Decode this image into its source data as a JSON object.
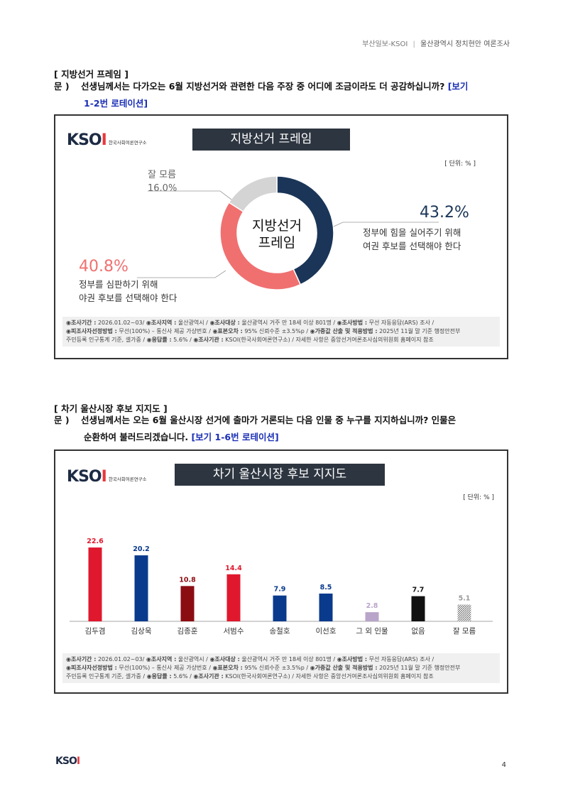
{
  "header": {
    "left": "부산일보-KSOI",
    "sep": "|",
    "right": "울산광역시 정치현안 여론조사"
  },
  "section1": {
    "title": "[ 지방선거 프레임 ]",
    "q_prefix": "문 )",
    "q_line1": "선생님께서는 다가오는 6월 지방선거와 관련한 다음 주장 중 어디에 조금이라도 더 공감하십니까?",
    "q_tag1": "[보기",
    "q_line2": "1-2번 로테이션]",
    "chart_title": "지방선거 프레임",
    "unit": "[ 단위: % ]",
    "center_line1": "지방선거",
    "center_line2": "프레임"
  },
  "chart_data": [
    {
      "type": "pie",
      "title": "지방선거 프레임",
      "slices": [
        {
          "label_line1": "정부에 힘을 실어주기 위해",
          "label_line2": "여권 후보를 선택해야 한다",
          "value": 43.2,
          "value_text": "43.2%",
          "color": "#1a3558"
        },
        {
          "label_line1": "정부를 심판하기 위해",
          "label_line2": "야권 후보를 선택해야 한다",
          "value": 40.8,
          "value_text": "40.8%",
          "color": "#f07070"
        },
        {
          "label_line1": "잘 모름",
          "label_line2": "",
          "value": 16.0,
          "value_text": "16.0%",
          "color": "#d4d4d4"
        }
      ]
    },
    {
      "type": "bar",
      "title": "차기 울산시장 후보 지지도",
      "categories": [
        "김두겸",
        "김상욱",
        "김종훈",
        "서범수",
        "송철호",
        "이선호",
        "그 외 인물",
        "없음",
        "잘 모름"
      ],
      "values": [
        22.6,
        20.2,
        10.8,
        14.4,
        7.9,
        8.5,
        2.8,
        7.7,
        5.1
      ],
      "value_texts": [
        "22.6",
        "20.2",
        "10.8",
        "14.4",
        "7.9",
        "8.5",
        "2.8",
        "7.7",
        "5.1"
      ],
      "colors": [
        "#e0182e",
        "#0a3a8c",
        "#8b0d12",
        "#e0182e",
        "#0a3a8c",
        "#0a3a8c",
        "#b9a5c9",
        "#111111",
        "#9a9a9a"
      ],
      "label_colors": [
        "#e0182e",
        "#0a3a8c",
        "#8b0d12",
        "#e0182e",
        "#0a3a8c",
        "#0a3a8c",
        "#b9a5c9",
        "#111111",
        "#9a9a9a"
      ],
      "hatched": [
        false,
        false,
        false,
        false,
        false,
        false,
        false,
        false,
        true
      ],
      "ylim": [
        0,
        30
      ]
    }
  ],
  "section2": {
    "title": "[ 차기 울산시장 후보 지지도 ]",
    "q_prefix": "문 )",
    "q_line1": "선생님께서는 오는 6월 울산시장 선거에 출마가 거론되는 다음 인물 중 누구를 지지하십니까? 인물은",
    "q_line2": "순환하여 불러드리겠습니다.",
    "q_tag": "[보기 1-6번 로테이션]",
    "chart_title": "차기 울산시장 후보 지지도",
    "unit": "[ 단위: % ]"
  },
  "logo": {
    "k": "K",
    "s": "S",
    "o": "O",
    "i": "I",
    "sub": "한국사회여론연구소"
  },
  "footnote": {
    "l1a": "◉조사기간 :",
    "l1b": "2026.01.02~03/",
    "l1c": "◉조사지역 :",
    "l1d": "울산광역시 /",
    "l1e": "◉조사대상 :",
    "l1f": "울산광역시 거주 만 18세 이상 801명 /",
    "l1g": "◉조사방법 :",
    "l1h": "무선 자동응답(ARS) 조사 /",
    "l2a": "◉피조사자선정방법 :",
    "l2b": "무선(100%) – 통신사 제공 가상번호 /",
    "l2c": "◉표본오차 :",
    "l2d": "95% 신뢰수준 ±3.5%p /",
    "l2e": "◉가중값 산출 및 적용방법 :",
    "l2f": "2025년 11월 말 기준 행정안전부",
    "l3a": "주민등록 인구통계 기준, 셀가중 /",
    "l3b": "◉응답률 :",
    "l3c": "5.6% /",
    "l3d": "◉조사기관 :",
    "l3e": "KSOI(한국사회여론연구소) /",
    "l3f": "자세한 사항은 중앙선거여론조사심의위원회 홈페이지 참조"
  },
  "page_number": "4"
}
